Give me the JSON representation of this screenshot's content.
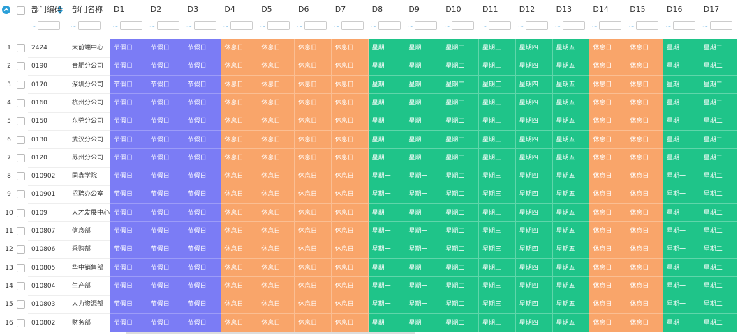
{
  "table": {
    "headers": [
      "部门编码",
      "部门名称",
      "D1",
      "D2",
      "D3",
      "D4",
      "D5",
      "D6",
      "D7",
      "D8",
      "D9",
      "D10",
      "D11",
      "D12",
      "D13",
      "D14",
      "D15",
      "D16",
      "D17"
    ],
    "filter_symbol": "~",
    "rows": [
      [
        1,
        "2424",
        "大前端中心",
        "节假日",
        "节假日",
        "节假日",
        "休息日",
        "休息日",
        "休息日",
        "休息日",
        "星期一",
        "星期一",
        "星期二",
        "星期三",
        "星期四",
        "星期五",
        "休息日",
        "休息日",
        "星期一",
        "星期二"
      ],
      [
        2,
        "0190",
        "合肥分公司",
        "节假日",
        "节假日",
        "节假日",
        "休息日",
        "休息日",
        "休息日",
        "休息日",
        "星期一",
        "星期一",
        "星期二",
        "星期三",
        "星期四",
        "星期五",
        "休息日",
        "休息日",
        "星期一",
        "星期二"
      ],
      [
        3,
        "0170",
        "深圳分公司",
        "节假日",
        "节假日",
        "节假日",
        "休息日",
        "休息日",
        "休息日",
        "休息日",
        "星期一",
        "星期一",
        "星期二",
        "星期三",
        "星期四",
        "星期五",
        "休息日",
        "休息日",
        "星期一",
        "星期二"
      ],
      [
        4,
        "0160",
        "杭州分公司",
        "节假日",
        "节假日",
        "节假日",
        "休息日",
        "休息日",
        "休息日",
        "休息日",
        "星期一",
        "星期一",
        "星期二",
        "星期三",
        "星期四",
        "星期五",
        "休息日",
        "休息日",
        "星期一",
        "星期二"
      ],
      [
        5,
        "0150",
        "东莞分公司",
        "节假日",
        "节假日",
        "节假日",
        "休息日",
        "休息日",
        "休息日",
        "休息日",
        "星期一",
        "星期一",
        "星期二",
        "星期三",
        "星期四",
        "星期五",
        "休息日",
        "休息日",
        "星期一",
        "星期二"
      ],
      [
        6,
        "0130",
        "武汉分公司",
        "节假日",
        "节假日",
        "节假日",
        "休息日",
        "休息日",
        "休息日",
        "休息日",
        "星期一",
        "星期一",
        "星期二",
        "星期三",
        "星期四",
        "星期五",
        "休息日",
        "休息日",
        "星期一",
        "星期二"
      ],
      [
        7,
        "0120",
        "苏州分公司",
        "节假日",
        "节假日",
        "节假日",
        "休息日",
        "休息日",
        "休息日",
        "休息日",
        "星期一",
        "星期一",
        "星期二",
        "星期三",
        "星期四",
        "星期五",
        "休息日",
        "休息日",
        "星期一",
        "星期二"
      ],
      [
        8,
        "010902",
        "同鑫学院",
        "节假日",
        "节假日",
        "节假日",
        "休息日",
        "休息日",
        "休息日",
        "休息日",
        "星期一",
        "星期一",
        "星期二",
        "星期三",
        "星期四",
        "星期五",
        "休息日",
        "休息日",
        "星期一",
        "星期二"
      ],
      [
        9,
        "010901",
        "招聘办公室",
        "节假日",
        "节假日",
        "节假日",
        "休息日",
        "休息日",
        "休息日",
        "休息日",
        "星期一",
        "星期一",
        "星期二",
        "星期三",
        "星期四",
        "星期五",
        "休息日",
        "休息日",
        "星期一",
        "星期二"
      ],
      [
        10,
        "0109",
        "人才发展中心",
        "节假日",
        "节假日",
        "节假日",
        "休息日",
        "休息日",
        "休息日",
        "休息日",
        "星期一",
        "星期一",
        "星期二",
        "星期三",
        "星期四",
        "星期五",
        "休息日",
        "休息日",
        "星期一",
        "星期二"
      ],
      [
        11,
        "010807",
        "信息部",
        "节假日",
        "节假日",
        "节假日",
        "休息日",
        "休息日",
        "休息日",
        "休息日",
        "星期一",
        "星期一",
        "星期二",
        "星期三",
        "星期四",
        "星期五",
        "休息日",
        "休息日",
        "星期一",
        "星期二"
      ],
      [
        12,
        "010806",
        "采购部",
        "节假日",
        "节假日",
        "节假日",
        "休息日",
        "休息日",
        "休息日",
        "休息日",
        "星期一",
        "星期一",
        "星期二",
        "星期三",
        "星期四",
        "星期五",
        "休息日",
        "休息日",
        "星期一",
        "星期二"
      ],
      [
        13,
        "010805",
        "华中销售部",
        "节假日",
        "节假日",
        "节假日",
        "休息日",
        "休息日",
        "休息日",
        "休息日",
        "星期一",
        "星期一",
        "星期二",
        "星期三",
        "星期四",
        "星期五",
        "休息日",
        "休息日",
        "星期一",
        "星期二"
      ],
      [
        14,
        "010804",
        "生产部",
        "节假日",
        "节假日",
        "节假日",
        "休息日",
        "休息日",
        "休息日",
        "休息日",
        "星期一",
        "星期一",
        "星期二",
        "星期三",
        "星期四",
        "星期五",
        "休息日",
        "休息日",
        "星期一",
        "星期二"
      ],
      [
        15,
        "010803",
        "人力资源部",
        "节假日",
        "节假日",
        "节假日",
        "休息日",
        "休息日",
        "休息日",
        "休息日",
        "星期一",
        "星期一",
        "星期二",
        "星期三",
        "星期四",
        "星期五",
        "休息日",
        "休息日",
        "星期一",
        "星期二"
      ],
      [
        16,
        "010802",
        "财务部",
        "节假日",
        "节假日",
        "节假日",
        "休息日",
        "休息日",
        "休息日",
        "休息日",
        "星期一",
        "星期一",
        "星期二",
        "星期三",
        "星期四",
        "星期五",
        "休息日",
        "休息日",
        "星期一",
        "星期二"
      ]
    ]
  }
}
